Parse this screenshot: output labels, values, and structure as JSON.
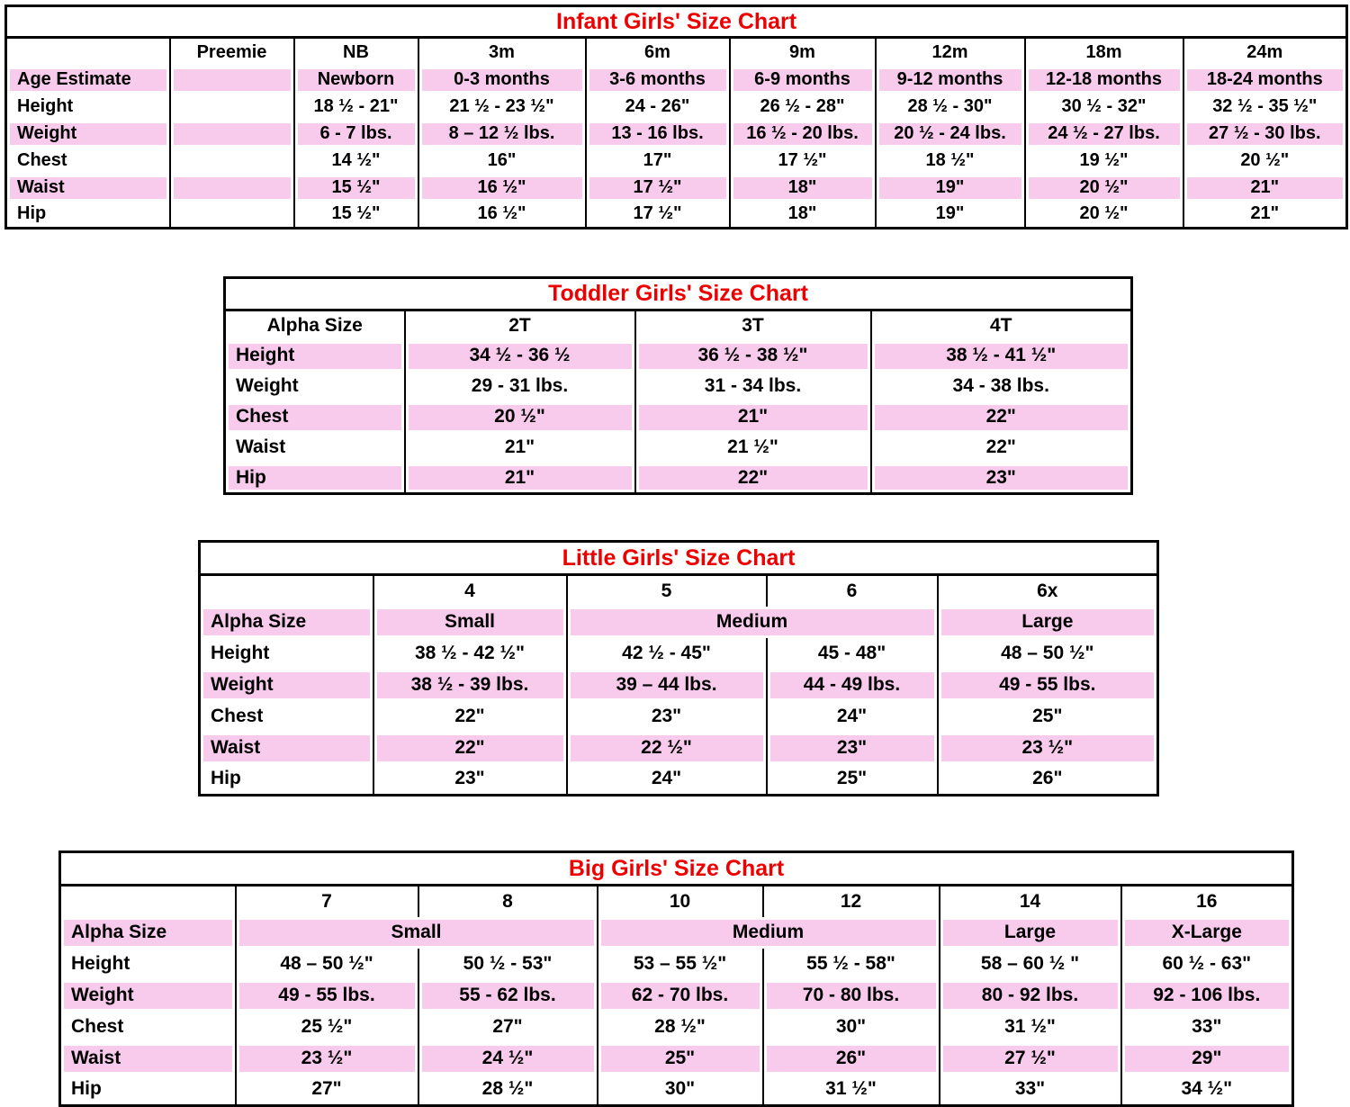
{
  "colors": {
    "title_red": "#ee0000",
    "row_pink": "#f8caec",
    "grid_black": "#000000"
  },
  "tables": {
    "infant": {
      "title": "Infant Girls' Size Chart",
      "body": [
        {
          "cells": [
            {
              "t": ""
            },
            {
              "t": "Preemie"
            },
            {
              "t": "NB"
            },
            {
              "t": "3m"
            },
            {
              "t": "6m"
            },
            {
              "t": "9m"
            },
            {
              "t": "12m"
            },
            {
              "t": "18m"
            },
            {
              "t": "24m"
            }
          ]
        },
        {
          "cells": [
            {
              "t": "Age Estimate"
            },
            {
              "t": ""
            },
            {
              "t": "Newborn"
            },
            {
              "t": "0-3 months"
            },
            {
              "t": "3-6 months"
            },
            {
              "t": "6-9 months"
            },
            {
              "t": "9-12 months"
            },
            {
              "t": "12-18 months"
            },
            {
              "t": "18-24 months"
            }
          ]
        },
        {
          "cells": [
            {
              "t": "Height"
            },
            {
              "t": ""
            },
            {
              "t": "18 ½ - 21\""
            },
            {
              "t": "21 ½ - 23 ½\""
            },
            {
              "t": "24 - 26\""
            },
            {
              "t": "26 ½ - 28\""
            },
            {
              "t": "28 ½ - 30\""
            },
            {
              "t": "30 ½ - 32\""
            },
            {
              "t": "32 ½ - 35 ½\""
            }
          ]
        },
        {
          "cells": [
            {
              "t": "Weight"
            },
            {
              "t": ""
            },
            {
              "t": "6 - 7 lbs."
            },
            {
              "t": "8 – 12 ½ lbs."
            },
            {
              "t": "13 - 16 lbs."
            },
            {
              "t": "16 ½ - 20 lbs."
            },
            {
              "t": "20 ½ - 24 lbs."
            },
            {
              "t": "24 ½ - 27 lbs."
            },
            {
              "t": "27 ½ - 30 lbs."
            }
          ]
        },
        {
          "cells": [
            {
              "t": "Chest"
            },
            {
              "t": ""
            },
            {
              "t": "14 ½\""
            },
            {
              "t": "16\""
            },
            {
              "t": "17\""
            },
            {
              "t": "17 ½\""
            },
            {
              "t": "18 ½\""
            },
            {
              "t": "19 ½\""
            },
            {
              "t": "20 ½\""
            }
          ]
        },
        {
          "cells": [
            {
              "t": "Waist"
            },
            {
              "t": ""
            },
            {
              "t": "15 ½\""
            },
            {
              "t": "16 ½\""
            },
            {
              "t": "17 ½\""
            },
            {
              "t": "18\""
            },
            {
              "t": "19\""
            },
            {
              "t": "20 ½\""
            },
            {
              "t": "21\""
            }
          ]
        },
        {
          "cells": [
            {
              "t": "Hip"
            },
            {
              "t": ""
            },
            {
              "t": "15 ½\""
            },
            {
              "t": "16 ½\""
            },
            {
              "t": "17 ½\""
            },
            {
              "t": "18\""
            },
            {
              "t": "19\""
            },
            {
              "t": "20 ½\""
            },
            {
              "t": "21\""
            }
          ]
        }
      ]
    },
    "toddler": {
      "title": "Toddler Girls' Size Chart",
      "body": [
        {
          "cells": [
            {
              "t": "Alpha Size"
            },
            {
              "t": "2T"
            },
            {
              "t": "3T"
            },
            {
              "t": "4T"
            }
          ]
        },
        {
          "cells": [
            {
              "t": "Height"
            },
            {
              "t": "34 ½ - 36 ½"
            },
            {
              "t": "36 ½ - 38 ½\""
            },
            {
              "t": "38 ½ - 41 ½\""
            }
          ]
        },
        {
          "cells": [
            {
              "t": "Weight"
            },
            {
              "t": "29 - 31 lbs."
            },
            {
              "t": "31 - 34 lbs."
            },
            {
              "t": "34 - 38 lbs."
            }
          ]
        },
        {
          "cells": [
            {
              "t": "Chest"
            },
            {
              "t": "20 ½\""
            },
            {
              "t": "21\""
            },
            {
              "t": "22\""
            }
          ]
        },
        {
          "cells": [
            {
              "t": "Waist"
            },
            {
              "t": "21\""
            },
            {
              "t": "21 ½\""
            },
            {
              "t": "22\""
            }
          ]
        },
        {
          "cells": [
            {
              "t": "Hip"
            },
            {
              "t": "21\""
            },
            {
              "t": "22\""
            },
            {
              "t": "23\""
            }
          ]
        }
      ]
    },
    "little": {
      "title": "Little Girls' Size Chart",
      "body": [
        {
          "cells": [
            {
              "t": ""
            },
            {
              "t": "4"
            },
            {
              "t": "5"
            },
            {
              "t": "6"
            },
            {
              "t": "6x"
            }
          ]
        },
        {
          "cells": [
            {
              "t": "Alpha Size"
            },
            {
              "t": "Small"
            },
            {
              "t": "Medium",
              "span": 2
            },
            {
              "t": "Large"
            }
          ]
        },
        {
          "cells": [
            {
              "t": "Height"
            },
            {
              "t": "38 ½ - 42 ½\""
            },
            {
              "t": "42 ½ - 45\""
            },
            {
              "t": "45 - 48\""
            },
            {
              "t": "48 – 50 ½\""
            }
          ]
        },
        {
          "cells": [
            {
              "t": "Weight"
            },
            {
              "t": "38 ½ - 39 lbs."
            },
            {
              "t": "39 – 44 lbs."
            },
            {
              "t": "44 - 49 lbs."
            },
            {
              "t": "49 - 55 lbs."
            }
          ]
        },
        {
          "cells": [
            {
              "t": "Chest"
            },
            {
              "t": "22\""
            },
            {
              "t": "23\""
            },
            {
              "t": "24\""
            },
            {
              "t": "25\""
            }
          ]
        },
        {
          "cells": [
            {
              "t": "Waist"
            },
            {
              "t": "22\""
            },
            {
              "t": "22 ½\""
            },
            {
              "t": "23\""
            },
            {
              "t": "23 ½\""
            }
          ]
        },
        {
          "cells": [
            {
              "t": "Hip"
            },
            {
              "t": "23\""
            },
            {
              "t": "24\""
            },
            {
              "t": "25\""
            },
            {
              "t": "26\""
            }
          ]
        }
      ]
    },
    "big": {
      "title": "Big Girls' Size Chart",
      "body": [
        {
          "cells": [
            {
              "t": ""
            },
            {
              "t": "7"
            },
            {
              "t": "8"
            },
            {
              "t": "10"
            },
            {
              "t": "12"
            },
            {
              "t": "14"
            },
            {
              "t": "16"
            }
          ]
        },
        {
          "cells": [
            {
              "t": "Alpha Size"
            },
            {
              "t": "Small",
              "span": 2
            },
            {
              "t": "Medium",
              "span": 2
            },
            {
              "t": "Large"
            },
            {
              "t": "X-Large"
            }
          ]
        },
        {
          "cells": [
            {
              "t": "Height"
            },
            {
              "t": "48 – 50 ½\""
            },
            {
              "t": "50 ½ - 53\""
            },
            {
              "t": "53 – 55 ½\""
            },
            {
              "t": "55 ½ - 58\""
            },
            {
              "t": "58 – 60 ½ \""
            },
            {
              "t": "60 ½ - 63\""
            }
          ]
        },
        {
          "cells": [
            {
              "t": "Weight"
            },
            {
              "t": "49 - 55 lbs."
            },
            {
              "t": "55 - 62 lbs."
            },
            {
              "t": "62 - 70 lbs."
            },
            {
              "t": "70 - 80 lbs."
            },
            {
              "t": "80 - 92 lbs."
            },
            {
              "t": "92 - 106 lbs."
            }
          ]
        },
        {
          "cells": [
            {
              "t": "Chest"
            },
            {
              "t": "25 ½\""
            },
            {
              "t": "27\""
            },
            {
              "t": "28 ½\""
            },
            {
              "t": "30\""
            },
            {
              "t": "31 ½\""
            },
            {
              "t": "33\""
            }
          ]
        },
        {
          "cells": [
            {
              "t": "Waist"
            },
            {
              "t": "23 ½\""
            },
            {
              "t": "24 ½\""
            },
            {
              "t": "25\""
            },
            {
              "t": "26\""
            },
            {
              "t": "27 ½\""
            },
            {
              "t": "29\""
            }
          ]
        },
        {
          "cells": [
            {
              "t": "Hip"
            },
            {
              "t": "27\""
            },
            {
              "t": "28 ½\""
            },
            {
              "t": "30\""
            },
            {
              "t": "31 ½\""
            },
            {
              "t": "33\""
            },
            {
              "t": "34 ½\""
            }
          ]
        }
      ]
    }
  }
}
